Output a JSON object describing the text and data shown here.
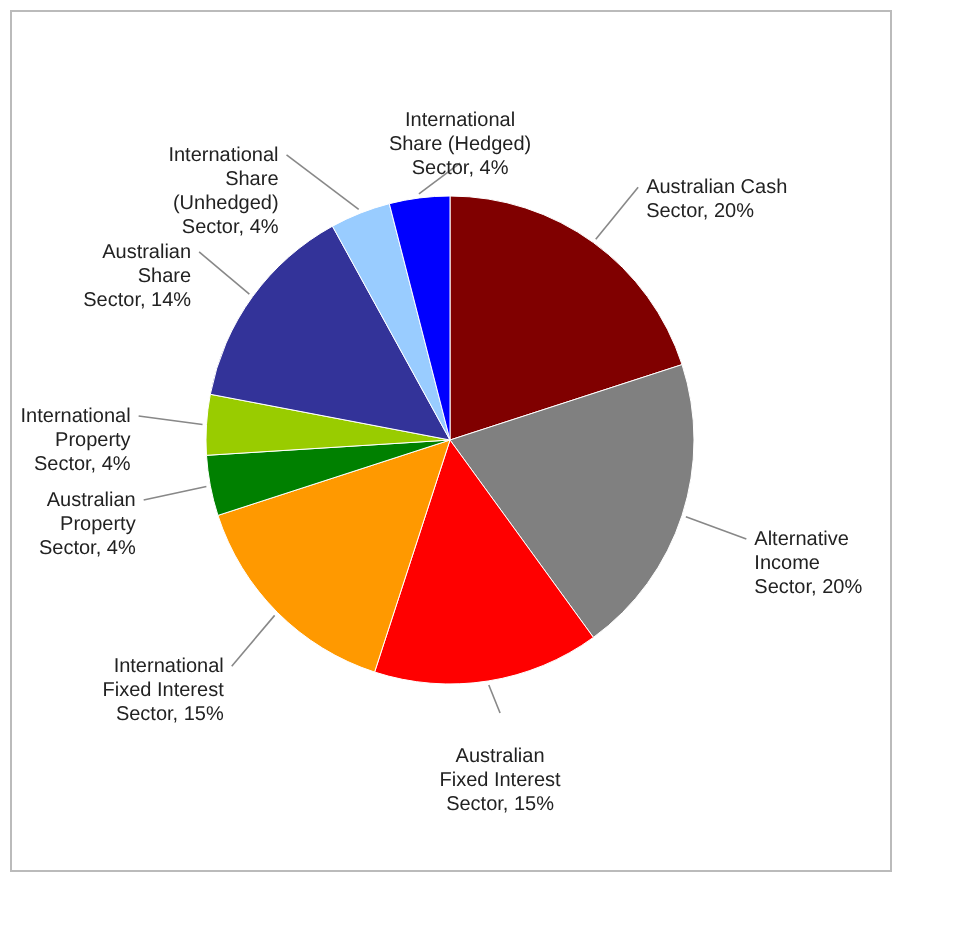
{
  "chart_data": {
    "type": "pie",
    "categories": [
      "Australian Cash Sector",
      "Alternative Income Sector",
      "Australian Fixed Interest Sector",
      "International Fixed Interest Sector",
      "Australian Property Sector",
      "International Property Sector",
      "Australian Share Sector",
      "International Share (Unhedged) Sector",
      "International Share (Hedged) Sector"
    ],
    "values": [
      20,
      20,
      15,
      15,
      4,
      4,
      14,
      4,
      4
    ],
    "value_labels": [
      "20%",
      "20%",
      "15%",
      "15%",
      "4%",
      "4%",
      "14%",
      "4%",
      "4%"
    ],
    "colors": [
      "#800000",
      "#808080",
      "#ff0000",
      "#ff9900",
      "#008000",
      "#99cc00",
      "#333399",
      "#99ccff",
      "#0000ff"
    ],
    "legend": false
  }
}
